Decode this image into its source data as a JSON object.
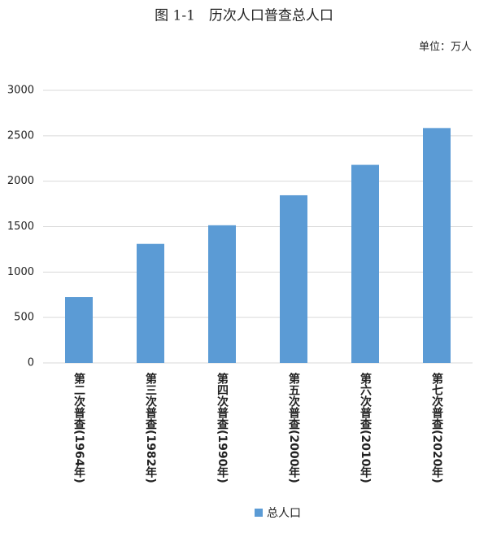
{
  "chart_data": {
    "type": "bar",
    "title": "图 1-1　历次人口普查总人口",
    "unit": "单位：万人",
    "categories": [
      "第二次普查(1964年)",
      "第三次普查(1982年)",
      "第四次普查(1990年)",
      "第五次普查(2000年)",
      "第六次普查(2010年)",
      "第七次普查(2020年)"
    ],
    "series": [
      {
        "name": "总人口",
        "color": "#5b9bd5",
        "values": [
          725,
          1310,
          1515,
          1845,
          2180,
          2585
        ]
      }
    ],
    "ylim": [
      0,
      3000
    ],
    "yticks": [
      0,
      500,
      1000,
      1500,
      2000,
      2500,
      3000
    ],
    "grid": true,
    "legend": "bottom"
  }
}
